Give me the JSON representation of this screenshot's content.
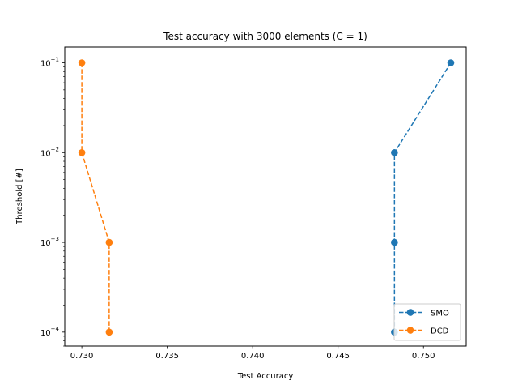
{
  "chart_data": {
    "type": "line",
    "title": "Test accuracy with 3000 elements (C = 1)",
    "xlabel": "Test Accuracy",
    "ylabel": "Threshold [#]",
    "xlim": [
      0.729,
      0.7525
    ],
    "ylim": [
      7e-05,
      0.15
    ],
    "yscale": "log",
    "grid": false,
    "legend_position": "lower-right",
    "x_ticks": [
      0.73,
      0.735,
      0.74,
      0.745,
      0.75
    ],
    "x_tick_labels": [
      "0.730",
      "0.735",
      "0.740",
      "0.745",
      "0.750"
    ],
    "y_ticks": [
      0.0001,
      0.001,
      0.01,
      0.1
    ],
    "y_tick_labels": [
      {
        "base": "10",
        "exp": "−4"
      },
      {
        "base": "10",
        "exp": "−3"
      },
      {
        "base": "10",
        "exp": "−2"
      },
      {
        "base": "10",
        "exp": "−1"
      }
    ],
    "series": [
      {
        "name": "SMO",
        "color": "#1f77b4",
        "line_style": "dashed",
        "marker": "circle",
        "x": [
          0.7516,
          0.7483,
          0.7483,
          0.7483
        ],
        "y": [
          0.1,
          0.01,
          0.001,
          0.0001
        ]
      },
      {
        "name": "DCD",
        "color": "#ff7f0e",
        "line_style": "dashed",
        "marker": "circle",
        "x": [
          0.73,
          0.73,
          0.7316,
          0.7316
        ],
        "y": [
          0.1,
          0.01,
          0.001,
          0.0001
        ]
      }
    ]
  }
}
